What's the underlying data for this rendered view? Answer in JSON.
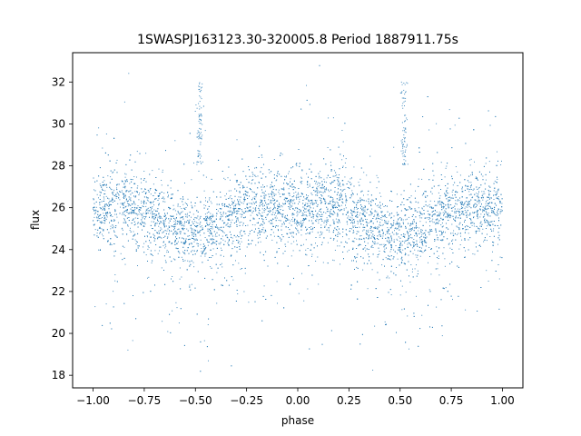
{
  "chart_data": {
    "type": "scatter",
    "title": "1SWASPJ163123.30-320005.8 Period 1887911.75s",
    "xlabel": "phase",
    "ylabel": "flux",
    "xlim": [
      -1.1,
      1.1
    ],
    "ylim": [
      17.4,
      33.4
    ],
    "xticks": [
      -1.0,
      -0.75,
      -0.5,
      -0.25,
      0.0,
      0.25,
      0.5,
      0.75,
      1.0
    ],
    "xtick_labels": [
      "−1.00",
      "−0.75",
      "−0.50",
      "−0.25",
      "0.00",
      "0.25",
      "0.50",
      "0.75",
      "1.00"
    ],
    "yticks": [
      18,
      20,
      22,
      24,
      26,
      28,
      30,
      32
    ],
    "ytick_labels": [
      "18",
      "20",
      "22",
      "24",
      "26",
      "28",
      "30",
      "32"
    ],
    "grid": false,
    "series_color": "#1f77b4",
    "points_description_values": {
      "phase_range": [
        -1.0,
        1.0
      ],
      "typical_flux_center": 25.5,
      "typical_flux_spread": [
        23,
        28
      ],
      "min_flux": 18,
      "max_flux": 32.9
    }
  }
}
